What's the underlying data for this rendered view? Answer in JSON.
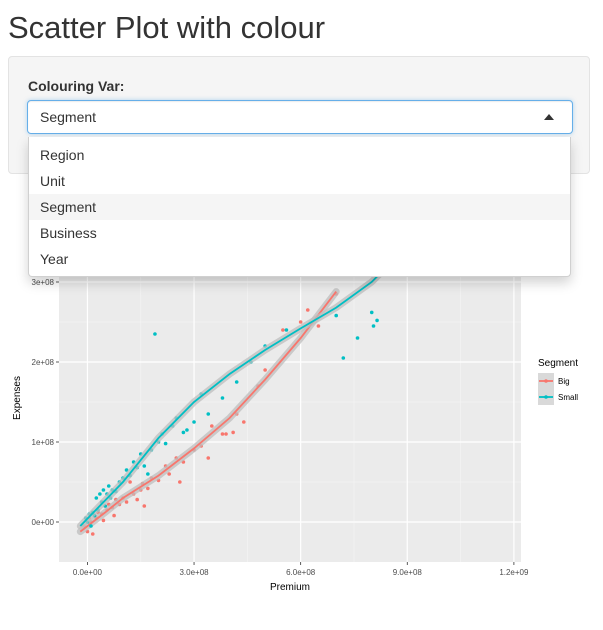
{
  "page": {
    "title": "Scatter Plot with colour"
  },
  "control": {
    "label": "Colouring Var:",
    "selected": "Segment",
    "options": [
      "Region",
      "Unit",
      "Segment",
      "Business",
      "Year"
    ]
  },
  "chart_data": {
    "type": "scatter",
    "xlabel": "Premium",
    "ylabel": "Expenses",
    "xlim": [
      -80000000,
      1220000000
    ],
    "ylim": [
      -50000000,
      320000000
    ],
    "x_ticks": [
      0,
      300000000,
      600000000,
      900000000,
      1200000000
    ],
    "x_tick_labels": [
      "0.0e+00",
      "3.0e+08",
      "6.0e+08",
      "9.0e+08",
      "1.2e+09"
    ],
    "y_ticks": [
      0,
      100000000,
      200000000,
      300000000
    ],
    "y_tick_labels": [
      "0e+00",
      "1e+08",
      "2e+08",
      "3e+08"
    ],
    "grid": true,
    "legend": {
      "title": "Segment",
      "position": "right"
    },
    "series": [
      {
        "name": "Big",
        "color": "#F8766D",
        "points": [
          [
            -10000000,
            -5000000
          ],
          [
            0,
            -12000000
          ],
          [
            5000000,
            5000000
          ],
          [
            10000000,
            0
          ],
          [
            15000000,
            -15000000
          ],
          [
            20000000,
            8000000
          ],
          [
            25000000,
            5000000
          ],
          [
            30000000,
            12000000
          ],
          [
            40000000,
            10000000
          ],
          [
            45000000,
            2000000
          ],
          [
            50000000,
            20000000
          ],
          [
            55000000,
            15000000
          ],
          [
            60000000,
            22000000
          ],
          [
            70000000,
            18000000
          ],
          [
            75000000,
            8000000
          ],
          [
            80000000,
            28000000
          ],
          [
            90000000,
            22000000
          ],
          [
            100000000,
            30000000
          ],
          [
            110000000,
            25000000
          ],
          [
            120000000,
            50000000
          ],
          [
            130000000,
            35000000
          ],
          [
            140000000,
            28000000
          ],
          [
            150000000,
            40000000
          ],
          [
            155000000,
            48000000
          ],
          [
            160000000,
            20000000
          ],
          [
            170000000,
            42000000
          ],
          [
            180000000,
            55000000
          ],
          [
            200000000,
            52000000
          ],
          [
            220000000,
            70000000
          ],
          [
            230000000,
            60000000
          ],
          [
            250000000,
            80000000
          ],
          [
            260000000,
            50000000
          ],
          [
            270000000,
            75000000
          ],
          [
            300000000,
            90000000
          ],
          [
            320000000,
            95000000
          ],
          [
            340000000,
            80000000
          ],
          [
            350000000,
            120000000
          ],
          [
            380000000,
            110000000
          ],
          [
            390000000,
            110000000
          ],
          [
            410000000,
            112000000
          ],
          [
            420000000,
            135000000
          ],
          [
            440000000,
            125000000
          ],
          [
            480000000,
            170000000
          ],
          [
            500000000,
            190000000
          ],
          [
            550000000,
            240000000
          ],
          [
            600000000,
            250000000
          ],
          [
            620000000,
            265000000
          ],
          [
            650000000,
            245000000
          ],
          [
            700000000,
            285000000
          ]
        ],
        "fit": [
          [
            -20000000,
            -12000000
          ],
          [
            50000000,
            12000000
          ],
          [
            100000000,
            30000000
          ],
          [
            200000000,
            58000000
          ],
          [
            300000000,
            92000000
          ],
          [
            400000000,
            130000000
          ],
          [
            500000000,
            178000000
          ],
          [
            600000000,
            230000000
          ],
          [
            700000000,
            288000000
          ]
        ]
      },
      {
        "name": "Small",
        "color": "#00BFC4",
        "points": [
          [
            -5000000,
            5000000
          ],
          [
            0,
            0
          ],
          [
            5000000,
            10000000
          ],
          [
            10000000,
            -5000000
          ],
          [
            15000000,
            12000000
          ],
          [
            20000000,
            8000000
          ],
          [
            25000000,
            30000000
          ],
          [
            30000000,
            15000000
          ],
          [
            35000000,
            35000000
          ],
          [
            40000000,
            25000000
          ],
          [
            45000000,
            40000000
          ],
          [
            50000000,
            20000000
          ],
          [
            55000000,
            35000000
          ],
          [
            60000000,
            45000000
          ],
          [
            65000000,
            30000000
          ],
          [
            70000000,
            40000000
          ],
          [
            80000000,
            38000000
          ],
          [
            90000000,
            50000000
          ],
          [
            100000000,
            55000000
          ],
          [
            110000000,
            65000000
          ],
          [
            120000000,
            58000000
          ],
          [
            130000000,
            75000000
          ],
          [
            140000000,
            68000000
          ],
          [
            150000000,
            85000000
          ],
          [
            160000000,
            70000000
          ],
          [
            170000000,
            60000000
          ],
          [
            180000000,
            90000000
          ],
          [
            190000000,
            235000000
          ],
          [
            200000000,
            100000000
          ],
          [
            210000000,
            110000000
          ],
          [
            220000000,
            98000000
          ],
          [
            240000000,
            120000000
          ],
          [
            250000000,
            130000000
          ],
          [
            270000000,
            112000000
          ],
          [
            280000000,
            115000000
          ],
          [
            300000000,
            125000000
          ],
          [
            320000000,
            160000000
          ],
          [
            340000000,
            135000000
          ],
          [
            380000000,
            155000000
          ],
          [
            420000000,
            175000000
          ],
          [
            460000000,
            200000000
          ],
          [
            500000000,
            220000000
          ],
          [
            560000000,
            240000000
          ],
          [
            700000000,
            258000000
          ],
          [
            720000000,
            205000000
          ],
          [
            760000000,
            230000000
          ],
          [
            800000000,
            262000000
          ],
          [
            805000000,
            245000000
          ],
          [
            815000000,
            252000000
          ]
        ],
        "fit": [
          [
            -20000000,
            -5000000
          ],
          [
            100000000,
            50000000
          ],
          [
            200000000,
            105000000
          ],
          [
            300000000,
            150000000
          ],
          [
            400000000,
            185000000
          ],
          [
            500000000,
            215000000
          ],
          [
            600000000,
            242000000
          ],
          [
            700000000,
            268000000
          ],
          [
            800000000,
            300000000
          ],
          [
            900000000,
            345000000
          ],
          [
            1000000000,
            400000000
          ]
        ]
      }
    ]
  }
}
